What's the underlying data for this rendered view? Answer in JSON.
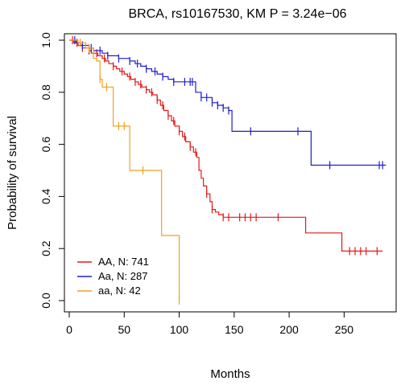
{
  "chart_data": {
    "type": "line",
    "title": "BRCA, rs10167530, KM P = 3.24e−06",
    "xlabel": "Months",
    "ylabel": "Probability of survival",
    "xlim": [
      0,
      290
    ],
    "ylim": [
      0,
      1.0
    ],
    "x_ticks": [
      "0",
      "50",
      "100",
      "150",
      "200",
      "250"
    ],
    "y_ticks": [
      "0.0",
      "0.2",
      "0.4",
      "0.6",
      "0.8",
      "1.0"
    ],
    "legend_position": "bottom-left",
    "series": [
      {
        "name": "AA, N: 741",
        "color": "#e31a1c",
        "x": [
          0,
          2,
          4,
          6,
          8,
          10,
          12,
          15,
          18,
          20,
          23,
          26,
          30,
          33,
          36,
          40,
          43,
          46,
          50,
          53,
          56,
          60,
          63,
          66,
          70,
          73,
          76,
          80,
          83,
          86,
          90,
          93,
          96,
          100,
          103,
          106,
          110,
          113,
          116,
          118,
          120,
          122,
          125,
          128,
          130,
          133,
          136,
          140,
          160,
          185,
          200,
          215,
          235,
          248,
          285
        ],
        "y": [
          1.0,
          1.0,
          0.99,
          0.99,
          0.98,
          0.98,
          0.97,
          0.97,
          0.96,
          0.95,
          0.95,
          0.94,
          0.93,
          0.92,
          0.91,
          0.9,
          0.89,
          0.88,
          0.87,
          0.86,
          0.85,
          0.84,
          0.83,
          0.82,
          0.81,
          0.8,
          0.79,
          0.77,
          0.75,
          0.73,
          0.71,
          0.69,
          0.67,
          0.65,
          0.63,
          0.61,
          0.59,
          0.57,
          0.55,
          0.5,
          0.47,
          0.44,
          0.41,
          0.38,
          0.35,
          0.34,
          0.33,
          0.32,
          0.32,
          0.32,
          0.32,
          0.26,
          0.26,
          0.19,
          0.19
        ],
        "censor_x": [
          3,
          7,
          12,
          18,
          25,
          32,
          40,
          48,
          55,
          60,
          65,
          70,
          75,
          80,
          85,
          90,
          95,
          100,
          105,
          110,
          115,
          125,
          130,
          140,
          145,
          155,
          160,
          165,
          170,
          190,
          255,
          260,
          265,
          270,
          280
        ]
      },
      {
        "name": "Aa, N: 287",
        "color": "#1f1fd0",
        "x": [
          0,
          3,
          6,
          10,
          14,
          18,
          22,
          26,
          30,
          35,
          40,
          45,
          50,
          55,
          60,
          65,
          70,
          75,
          80,
          85,
          90,
          95,
          100,
          110,
          115,
          120,
          130,
          135,
          140,
          145,
          148,
          160,
          200,
          210,
          220,
          240,
          280,
          288
        ],
        "y": [
          1.0,
          1.0,
          0.99,
          0.98,
          0.98,
          0.97,
          0.96,
          0.96,
          0.95,
          0.94,
          0.94,
          0.93,
          0.93,
          0.92,
          0.91,
          0.9,
          0.89,
          0.88,
          0.87,
          0.86,
          0.85,
          0.84,
          0.84,
          0.84,
          0.8,
          0.78,
          0.76,
          0.75,
          0.74,
          0.73,
          0.65,
          0.65,
          0.65,
          0.65,
          0.52,
          0.52,
          0.52,
          0.52
        ],
        "censor_x": [
          5,
          12,
          20,
          28,
          35,
          45,
          55,
          62,
          70,
          78,
          85,
          95,
          105,
          110,
          112,
          120,
          125,
          130,
          135,
          140,
          145,
          165,
          208,
          237,
          282,
          285
        ]
      },
      {
        "name": "aa, N: 42",
        "color": "#f0a020",
        "x": [
          0,
          8,
          15,
          22,
          25,
          28,
          30,
          36,
          40,
          48,
          52,
          55,
          60,
          70,
          80,
          84,
          90,
          98,
          100
        ],
        "y": [
          1.0,
          0.99,
          0.97,
          0.93,
          0.92,
          0.85,
          0.82,
          0.82,
          0.67,
          0.67,
          0.67,
          0.5,
          0.5,
          0.5,
          0.5,
          0.25,
          0.25,
          0.25,
          0.0
        ],
        "censor_x": [
          10,
          18,
          28,
          34,
          45,
          50,
          67,
          100
        ]
      }
    ]
  }
}
